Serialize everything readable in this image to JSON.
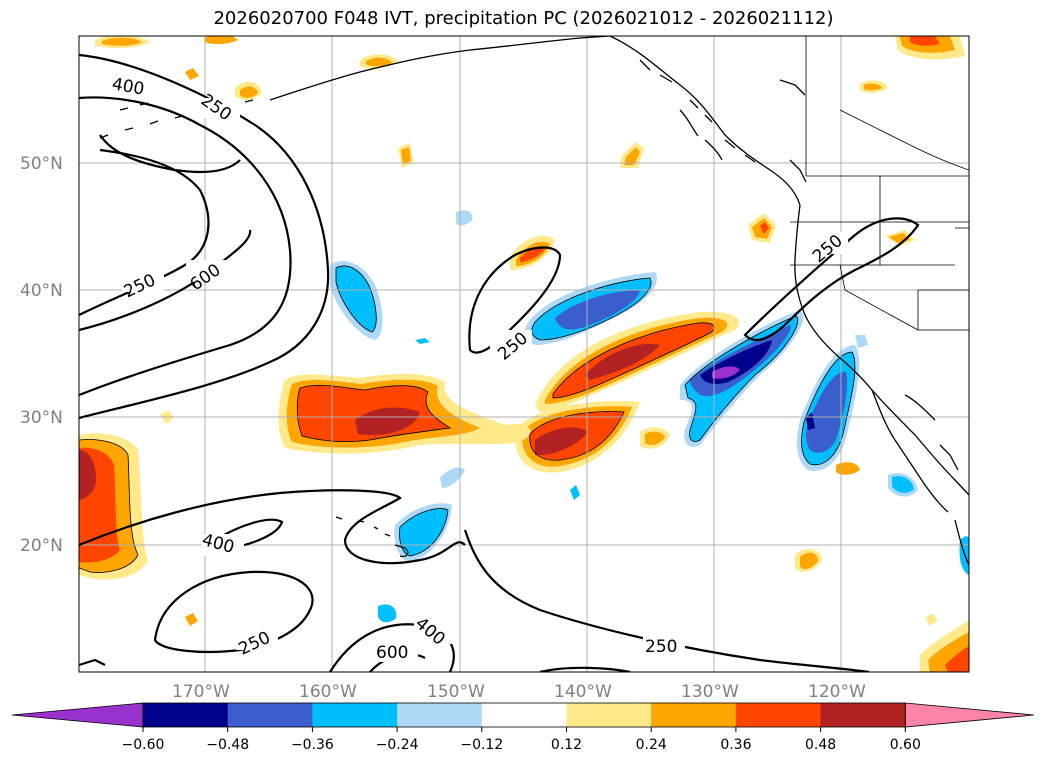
{
  "title": "2026020700 F048 IVT, precipitation PC (2026021012 - 2026021112)",
  "map": {
    "lat_labels": [
      "50°N",
      "40°N",
      "30°N",
      "20°N"
    ],
    "lon_labels": [
      "170°W",
      "160°W",
      "150°W",
      "140°W",
      "130°W",
      "120°W"
    ],
    "contour_labels": [
      "400",
      "250",
      "250",
      "600",
      "250",
      "250",
      "400",
      "250",
      "400",
      "600",
      "250"
    ]
  },
  "colorbar": {
    "ticks": [
      "−0.60",
      "−0.48",
      "−0.36",
      "−0.24",
      "−0.12",
      "0.12",
      "0.24",
      "0.36",
      "0.48",
      "0.60"
    ],
    "colors": [
      "#9932cc",
      "#00008b",
      "#3a5fcd",
      "#00bfff",
      "#add8f6",
      "#ffffff",
      "#ffe98a",
      "#ffa500",
      "#ff4500",
      "#b22222",
      "#ff85a8"
    ]
  }
}
